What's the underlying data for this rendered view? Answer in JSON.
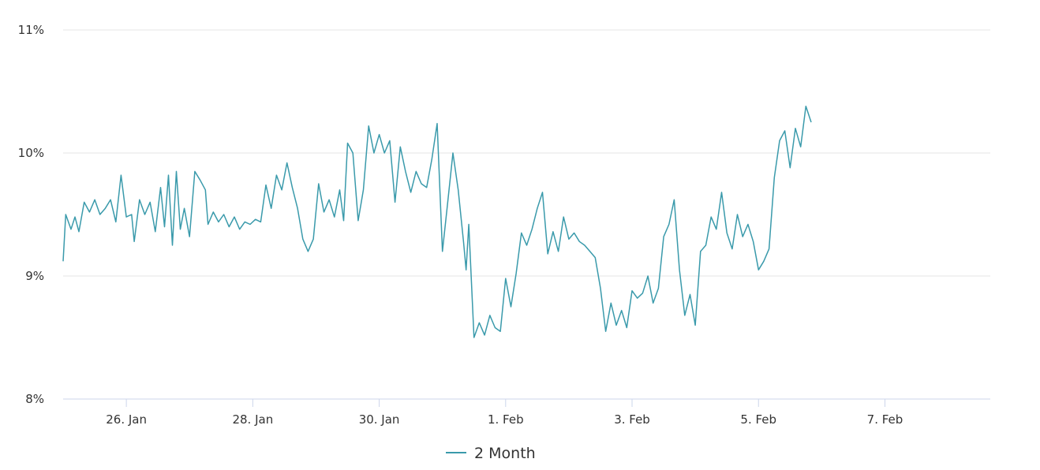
{
  "chart_data": {
    "type": "line",
    "title": "",
    "xlabel": "",
    "ylabel": "",
    "y_ticks": [
      "8%",
      "9%",
      "10%",
      "11%"
    ],
    "ylim": [
      8,
      11
    ],
    "x_ticks": [
      {
        "date": "2024-01-26",
        "label": "26. Jan"
      },
      {
        "date": "2024-01-28",
        "label": "28. Jan"
      },
      {
        "date": "2024-01-30",
        "label": "30. Jan"
      },
      {
        "date": "2024-02-01",
        "label": "1. Feb"
      },
      {
        "date": "2024-02-03",
        "label": "3. Feb"
      },
      {
        "date": "2024-02-05",
        "label": "5. Feb"
      },
      {
        "date": "2024-02-07",
        "label": "7. Feb"
      }
    ],
    "xlim": [
      "2024-01-25T00:00",
      "2024-02-08T16:00"
    ],
    "grid": true,
    "legend_position": "bottom-center",
    "series": [
      {
        "name": "2 Month",
        "color": "#3a9aab",
        "points": [
          [
            "2024-01-25T00:00",
            9.12
          ],
          [
            "2024-01-25T01:00",
            9.5
          ],
          [
            "2024-01-25T03:00",
            9.38
          ],
          [
            "2024-01-25T04:30",
            9.48
          ],
          [
            "2024-01-25T06:00",
            9.36
          ],
          [
            "2024-01-25T08:00",
            9.6
          ],
          [
            "2024-01-25T10:00",
            9.52
          ],
          [
            "2024-01-25T12:00",
            9.62
          ],
          [
            "2024-01-25T14:00",
            9.5
          ],
          [
            "2024-01-25T16:00",
            9.55
          ],
          [
            "2024-01-25T18:00",
            9.62
          ],
          [
            "2024-01-25T20:00",
            9.44
          ],
          [
            "2024-01-25T22:00",
            9.82
          ],
          [
            "2024-01-26T00:00",
            9.48
          ],
          [
            "2024-01-26T02:00",
            9.5
          ],
          [
            "2024-01-26T03:00",
            9.28
          ],
          [
            "2024-01-26T05:00",
            9.62
          ],
          [
            "2024-01-26T07:00",
            9.5
          ],
          [
            "2024-01-26T09:00",
            9.6
          ],
          [
            "2024-01-26T11:00",
            9.36
          ],
          [
            "2024-01-26T13:00",
            9.72
          ],
          [
            "2024-01-26T14:30",
            9.4
          ],
          [
            "2024-01-26T16:00",
            9.82
          ],
          [
            "2024-01-26T17:30",
            9.25
          ],
          [
            "2024-01-26T19:00",
            9.85
          ],
          [
            "2024-01-26T20:30",
            9.38
          ],
          [
            "2024-01-26T22:00",
            9.55
          ],
          [
            "2024-01-27T00:00",
            9.32
          ],
          [
            "2024-01-27T02:00",
            9.85
          ],
          [
            "2024-01-27T04:00",
            9.78
          ],
          [
            "2024-01-27T06:00",
            9.7
          ],
          [
            "2024-01-27T07:00",
            9.42
          ],
          [
            "2024-01-27T09:00",
            9.52
          ],
          [
            "2024-01-27T11:00",
            9.44
          ],
          [
            "2024-01-27T13:00",
            9.5
          ],
          [
            "2024-01-27T15:00",
            9.4
          ],
          [
            "2024-01-27T17:00",
            9.48
          ],
          [
            "2024-01-27T19:00",
            9.38
          ],
          [
            "2024-01-27T21:00",
            9.44
          ],
          [
            "2024-01-27T23:00",
            9.42
          ],
          [
            "2024-01-28T01:00",
            9.46
          ],
          [
            "2024-01-28T03:00",
            9.44
          ],
          [
            "2024-01-28T05:00",
            9.74
          ],
          [
            "2024-01-28T07:00",
            9.55
          ],
          [
            "2024-01-28T09:00",
            9.82
          ],
          [
            "2024-01-28T11:00",
            9.7
          ],
          [
            "2024-01-28T13:00",
            9.92
          ],
          [
            "2024-01-28T15:00",
            9.72
          ],
          [
            "2024-01-28T17:00",
            9.55
          ],
          [
            "2024-01-28T19:00",
            9.3
          ],
          [
            "2024-01-28T21:00",
            9.2
          ],
          [
            "2024-01-28T23:00",
            9.3
          ],
          [
            "2024-01-29T01:00",
            9.75
          ],
          [
            "2024-01-29T03:00",
            9.52
          ],
          [
            "2024-01-29T05:00",
            9.62
          ],
          [
            "2024-01-29T07:00",
            9.48
          ],
          [
            "2024-01-29T09:00",
            9.7
          ],
          [
            "2024-01-29T10:30",
            9.45
          ],
          [
            "2024-01-29T12:00",
            10.08
          ],
          [
            "2024-01-29T14:00",
            10.0
          ],
          [
            "2024-01-29T16:00",
            9.45
          ],
          [
            "2024-01-29T18:00",
            9.7
          ],
          [
            "2024-01-29T20:00",
            10.22
          ],
          [
            "2024-01-29T22:00",
            10.0
          ],
          [
            "2024-01-30T00:00",
            10.15
          ],
          [
            "2024-01-30T02:00",
            10.0
          ],
          [
            "2024-01-30T04:00",
            10.1
          ],
          [
            "2024-01-30T06:00",
            9.6
          ],
          [
            "2024-01-30T08:00",
            10.05
          ],
          [
            "2024-01-30T10:00",
            9.85
          ],
          [
            "2024-01-30T12:00",
            9.68
          ],
          [
            "2024-01-30T14:00",
            9.85
          ],
          [
            "2024-01-30T16:00",
            9.75
          ],
          [
            "2024-01-30T18:00",
            9.72
          ],
          [
            "2024-01-30T20:00",
            9.95
          ],
          [
            "2024-01-30T22:00",
            10.24
          ],
          [
            "2024-01-31T00:00",
            9.2
          ],
          [
            "2024-01-31T02:00",
            9.6
          ],
          [
            "2024-01-31T04:00",
            10.0
          ],
          [
            "2024-01-31T06:00",
            9.7
          ],
          [
            "2024-01-31T08:00",
            9.28
          ],
          [
            "2024-01-31T09:00",
            9.05
          ],
          [
            "2024-01-31T10:00",
            9.42
          ],
          [
            "2024-01-31T12:00",
            8.5
          ],
          [
            "2024-01-31T14:00",
            8.62
          ],
          [
            "2024-01-31T16:00",
            8.52
          ],
          [
            "2024-01-31T18:00",
            8.68
          ],
          [
            "2024-01-31T20:00",
            8.58
          ],
          [
            "2024-01-31T22:00",
            8.55
          ],
          [
            "2024-02-01T00:00",
            8.98
          ],
          [
            "2024-02-01T02:00",
            8.75
          ],
          [
            "2024-02-01T04:00",
            9.02
          ],
          [
            "2024-02-01T06:00",
            9.35
          ],
          [
            "2024-02-01T08:00",
            9.25
          ],
          [
            "2024-02-01T10:00",
            9.38
          ],
          [
            "2024-02-01T12:00",
            9.55
          ],
          [
            "2024-02-01T14:00",
            9.68
          ],
          [
            "2024-02-01T16:00",
            9.18
          ],
          [
            "2024-02-01T18:00",
            9.36
          ],
          [
            "2024-02-01T20:00",
            9.2
          ],
          [
            "2024-02-01T22:00",
            9.48
          ],
          [
            "2024-02-02T00:00",
            9.3
          ],
          [
            "2024-02-02T02:00",
            9.35
          ],
          [
            "2024-02-02T04:00",
            9.28
          ],
          [
            "2024-02-02T06:00",
            9.25
          ],
          [
            "2024-02-02T08:00",
            9.2
          ],
          [
            "2024-02-02T10:00",
            9.15
          ],
          [
            "2024-02-02T12:00",
            8.9
          ],
          [
            "2024-02-02T14:00",
            8.55
          ],
          [
            "2024-02-02T16:00",
            8.78
          ],
          [
            "2024-02-02T18:00",
            8.6
          ],
          [
            "2024-02-02T20:00",
            8.72
          ],
          [
            "2024-02-02T22:00",
            8.58
          ],
          [
            "2024-02-03T00:00",
            8.88
          ],
          [
            "2024-02-03T02:00",
            8.82
          ],
          [
            "2024-02-03T04:00",
            8.86
          ],
          [
            "2024-02-03T06:00",
            9.0
          ],
          [
            "2024-02-03T08:00",
            8.78
          ],
          [
            "2024-02-03T10:00",
            8.9
          ],
          [
            "2024-02-03T12:00",
            9.32
          ],
          [
            "2024-02-03T14:00",
            9.42
          ],
          [
            "2024-02-03T16:00",
            9.62
          ],
          [
            "2024-02-03T18:00",
            9.05
          ],
          [
            "2024-02-03T20:00",
            8.68
          ],
          [
            "2024-02-03T22:00",
            8.85
          ],
          [
            "2024-02-04T00:00",
            8.6
          ],
          [
            "2024-02-04T02:00",
            9.2
          ],
          [
            "2024-02-04T04:00",
            9.25
          ],
          [
            "2024-02-04T06:00",
            9.48
          ],
          [
            "2024-02-04T08:00",
            9.38
          ],
          [
            "2024-02-04T10:00",
            9.68
          ],
          [
            "2024-02-04T12:00",
            9.35
          ],
          [
            "2024-02-04T14:00",
            9.22
          ],
          [
            "2024-02-04T16:00",
            9.5
          ],
          [
            "2024-02-04T18:00",
            9.32
          ],
          [
            "2024-02-04T20:00",
            9.42
          ],
          [
            "2024-02-04T22:00",
            9.28
          ],
          [
            "2024-02-05T00:00",
            9.05
          ],
          [
            "2024-02-05T02:00",
            9.12
          ],
          [
            "2024-02-05T04:00",
            9.22
          ],
          [
            "2024-02-05T06:00",
            9.8
          ],
          [
            "2024-02-05T08:00",
            10.1
          ],
          [
            "2024-02-05T10:00",
            10.18
          ],
          [
            "2024-02-05T12:00",
            9.88
          ],
          [
            "2024-02-05T14:00",
            10.2
          ],
          [
            "2024-02-05T16:00",
            10.05
          ],
          [
            "2024-02-05T18:00",
            10.38
          ],
          [
            "2024-02-05T20:00",
            10.25
          ]
        ]
      }
    ]
  }
}
